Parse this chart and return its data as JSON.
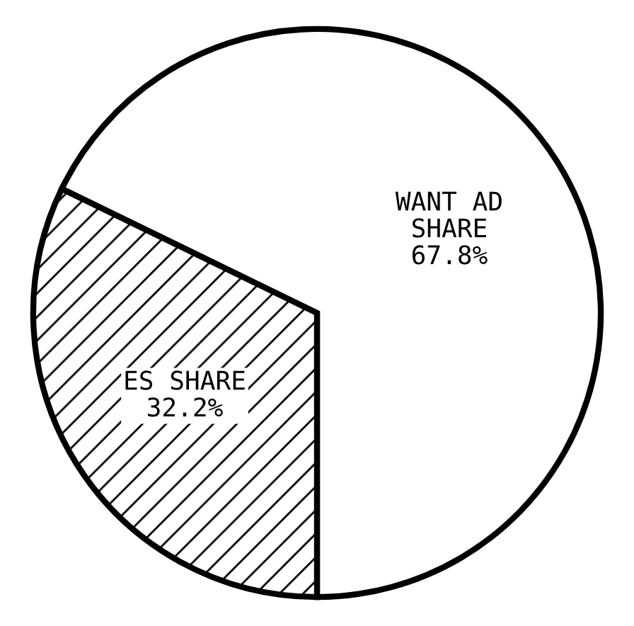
{
  "chart_data": {
    "type": "pie",
    "categories": [
      "WANT AD\nSHARE",
      "ES SHARE"
    ],
    "values": [
      67.8,
      32.2
    ],
    "value_labels": [
      "67.8%",
      "32.2%"
    ],
    "colors": [
      "#ffffff",
      "#000000"
    ]
  }
}
